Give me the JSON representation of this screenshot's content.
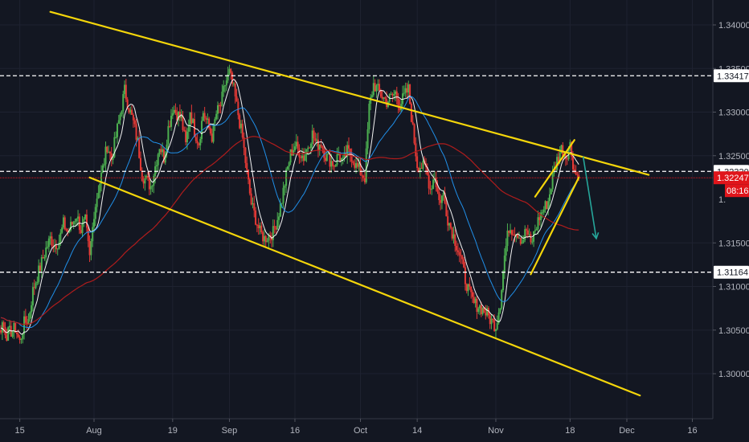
{
  "chart_data": {
    "type": "candlestick",
    "instrument_note": "",
    "x_axis": {
      "ticks": [
        {
          "label": "15",
          "day": -17
        },
        {
          "label": "Aug",
          "day": 0
        },
        {
          "label": "19",
          "day": 18
        },
        {
          "label": "Sep",
          "day": 31
        },
        {
          "label": "16",
          "day": 46
        },
        {
          "label": "Oct",
          "day": 61
        },
        {
          "label": "14",
          "day": 74
        },
        {
          "label": "Nov",
          "day": 92
        },
        {
          "label": "18",
          "day": 109
        },
        {
          "label": "Dec",
          "day": 122
        },
        {
          "label": "16",
          "day": 137
        }
      ],
      "range": [
        -27,
        147
      ]
    },
    "y_axis": {
      "ticks": [
        {
          "label": "1.34000",
          "value": 1.34
        },
        {
          "label": "1.33500",
          "value": 1.335
        },
        {
          "label": "1.33000",
          "value": 1.33
        },
        {
          "label": "1.32500",
          "value": 1.325
        },
        {
          "label": "1.31500",
          "value": 1.315
        },
        {
          "label": "1.31000",
          "value": 1.31
        },
        {
          "label": "1.30500",
          "value": 1.305
        },
        {
          "label": "1.30000",
          "value": 1.3
        }
      ],
      "partial_label": {
        "label": "1.",
        "value": 1.32
      },
      "range": [
        1.2955,
        1.3425
      ]
    },
    "horizontal_levels": [
      {
        "label": "1.33417",
        "value": 1.33417,
        "style": "dashed",
        "color": "#ffffff"
      },
      {
        "label": "1.32320",
        "value": 1.3232,
        "style": "dashed",
        "color": "#ffffff"
      },
      {
        "label": "1.31164",
        "value": 1.31164,
        "style": "dashed",
        "color": "#ffffff"
      }
    ],
    "current_price": {
      "label": "1.32247",
      "value": 1.32247,
      "countdown": "08:16",
      "color": "#e0151b"
    },
    "trendlines": [
      {
        "name": "channel-upper",
        "color": "#f5d60a",
        "from": [
          -10,
          1.3415
        ],
        "to": [
          127,
          1.3228
        ]
      },
      {
        "name": "channel-lower",
        "color": "#f5d60a",
        "from": [
          -1,
          1.3225
        ],
        "to": [
          125,
          1.2975
        ]
      },
      {
        "name": "wedge-upper",
        "color": "#f5d60a",
        "from": [
          101,
          1.3203
        ],
        "to": [
          110,
          1.3268
        ]
      },
      {
        "name": "wedge-lower",
        "color": "#f5d60a",
        "from": [
          100,
          1.3114
        ],
        "to": [
          111,
          1.3225
        ]
      }
    ],
    "projection_arrow": {
      "color": "#26a69a",
      "from": [
        112,
        1.3249
      ],
      "to": [
        115,
        1.3155
      ]
    },
    "candle_colors": {
      "up": "#4caf50",
      "down": "#e53935"
    },
    "moving_averages": [
      {
        "name": "ma-fast",
        "color": "#ffffff"
      },
      {
        "name": "ma-medium",
        "color": "#2196f3"
      },
      {
        "name": "ma-slow",
        "color": "#b71c1c"
      }
    ],
    "series_close": [
      [
        -27,
        1.3085
      ],
      [
        -25,
        1.3068
      ],
      [
        -24,
        1.3072
      ],
      [
        -23,
        1.3058
      ],
      [
        -22,
        1.3042
      ],
      [
        -21,
        1.3058
      ],
      [
        -20,
        1.3045
      ],
      [
        -18,
        1.3052
      ],
      [
        -17,
        1.3036
      ],
      [
        -16,
        1.3058
      ],
      [
        -15,
        1.3062
      ],
      [
        -14,
        1.3095
      ],
      [
        -13,
        1.3112
      ],
      [
        -11,
        1.3143
      ],
      [
        -10,
        1.3155
      ],
      [
        -9,
        1.3148
      ],
      [
        -8,
        1.3152
      ],
      [
        -7,
        1.3172
      ],
      [
        -6,
        1.3162
      ],
      [
        -4,
        1.3182
      ],
      [
        -3,
        1.3165
      ],
      [
        -2,
        1.3175
      ],
      [
        -1,
        1.3132
      ],
      [
        0,
        1.3185
      ],
      [
        1,
        1.3212
      ],
      [
        2,
        1.3235
      ],
      [
        3,
        1.3262
      ],
      [
        4,
        1.3246
      ],
      [
        6,
        1.3298
      ],
      [
        7,
        1.3325
      ],
      [
        8,
        1.3305
      ],
      [
        9,
        1.3288
      ],
      [
        10,
        1.3265
      ],
      [
        11,
        1.3228
      ],
      [
        13,
        1.3215
      ],
      [
        14,
        1.3238
      ],
      [
        15,
        1.3262
      ],
      [
        16,
        1.3248
      ],
      [
        17,
        1.3282
      ],
      [
        18,
        1.3305
      ],
      [
        20,
        1.3292
      ],
      [
        21,
        1.3262
      ],
      [
        22,
        1.3302
      ],
      [
        23,
        1.3278
      ],
      [
        24,
        1.3265
      ],
      [
        25,
        1.33
      ],
      [
        27,
        1.3272
      ],
      [
        28,
        1.3298
      ],
      [
        29,
        1.3308
      ],
      [
        30,
        1.3332
      ],
      [
        31,
        1.3345
      ],
      [
        32,
        1.3325
      ],
      [
        34,
        1.327
      ],
      [
        35,
        1.323
      ],
      [
        36,
        1.3195
      ],
      [
        37,
        1.3178
      ],
      [
        38,
        1.3162
      ],
      [
        39,
        1.3155
      ],
      [
        41,
        1.3162
      ],
      [
        42,
        1.3178
      ],
      [
        43,
        1.32
      ],
      [
        44,
        1.3228
      ],
      [
        45,
        1.3252
      ],
      [
        46,
        1.3262
      ],
      [
        48,
        1.3248
      ],
      [
        49,
        1.3262
      ],
      [
        50,
        1.3275
      ],
      [
        51,
        1.3262
      ],
      [
        52,
        1.3265
      ],
      [
        53,
        1.325
      ],
      [
        55,
        1.324
      ],
      [
        56,
        1.3252
      ],
      [
        57,
        1.3242
      ],
      [
        58,
        1.3255
      ],
      [
        59,
        1.325
      ],
      [
        60,
        1.3238
      ],
      [
        62,
        1.3225
      ],
      [
        63,
        1.3305
      ],
      [
        64,
        1.3332
      ],
      [
        65,
        1.3325
      ],
      [
        66,
        1.3318
      ],
      [
        67,
        1.3312
      ],
      [
        69,
        1.3322
      ],
      [
        70,
        1.3308
      ],
      [
        71,
        1.3318
      ],
      [
        72,
        1.3326
      ],
      [
        73,
        1.328
      ],
      [
        74,
        1.324
      ],
      [
        76,
        1.3235
      ],
      [
        77,
        1.3212
      ],
      [
        78,
        1.3228
      ],
      [
        79,
        1.3198
      ],
      [
        80,
        1.3205
      ],
      [
        81,
        1.3178
      ],
      [
        83,
        1.3148
      ],
      [
        84,
        1.3132
      ],
      [
        85,
        1.3108
      ],
      [
        86,
        1.3092
      ],
      [
        87,
        1.308
      ],
      [
        88,
        1.3078
      ],
      [
        89,
        1.3074
      ],
      [
        90,
        1.3068
      ],
      [
        91,
        1.306
      ],
      [
        92,
        1.3055
      ],
      [
        93,
        1.3082
      ],
      [
        94,
        1.3135
      ],
      [
        95,
        1.3168
      ],
      [
        97,
        1.3162
      ],
      [
        98,
        1.3152
      ],
      [
        99,
        1.3165
      ],
      [
        100,
        1.3148
      ],
      [
        101,
        1.3165
      ],
      [
        102,
        1.318
      ],
      [
        104,
        1.3198
      ],
      [
        105,
        1.3225
      ],
      [
        106,
        1.3245
      ],
      [
        107,
        1.3258
      ],
      [
        108,
        1.325
      ],
      [
        109,
        1.3262
      ],
      [
        110,
        1.3232
      ],
      [
        111,
        1.32247
      ]
    ]
  }
}
